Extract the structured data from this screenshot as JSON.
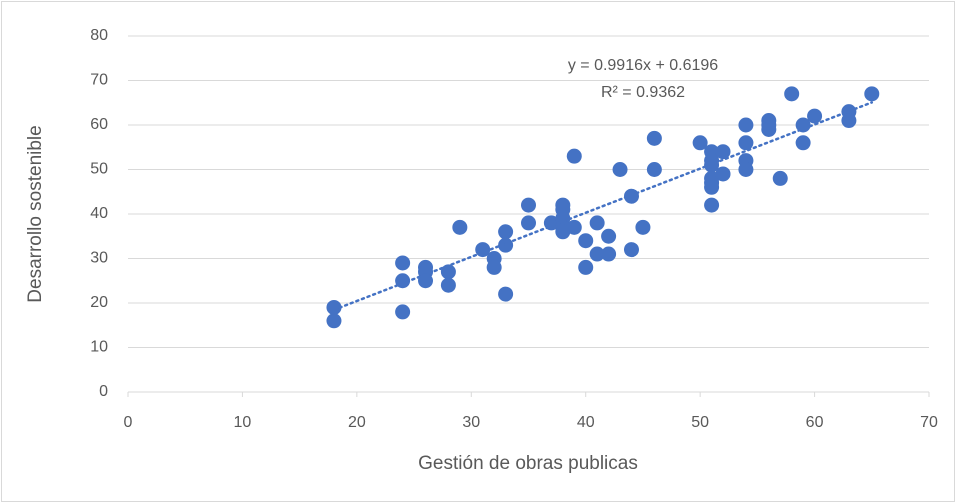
{
  "chart_data": {
    "type": "scatter",
    "x_label": "Gestión de obras publicas",
    "y_label": "Desarrollo sostenible",
    "color": "#4472c4",
    "xlim": [
      0,
      70
    ],
    "xticks": [
      0,
      10,
      20,
      30,
      40,
      50,
      60,
      70
    ],
    "ylim": [
      0,
      80
    ],
    "yticks": [
      0,
      10,
      20,
      30,
      40,
      50,
      60,
      70,
      80
    ],
    "grid": true,
    "x": [
      18,
      18,
      24,
      24,
      24,
      26,
      26,
      26,
      28,
      28,
      29,
      31,
      32,
      32,
      33,
      33,
      33,
      35,
      35,
      37,
      38,
      38,
      38,
      38,
      38,
      39,
      39,
      40,
      40,
      41,
      41,
      42,
      42,
      43,
      44,
      44,
      45,
      46,
      46,
      50,
      51,
      51,
      51,
      51,
      51,
      51,
      51,
      52,
      52,
      54,
      54,
      54,
      54,
      56,
      56,
      56,
      57,
      58,
      59,
      59,
      60,
      63,
      63,
      65
    ],
    "y": [
      19,
      16,
      29,
      25,
      18,
      28,
      27,
      25,
      27,
      24,
      37,
      32,
      30,
      28,
      36,
      33,
      22,
      42,
      38,
      38,
      42,
      41,
      39,
      37,
      36,
      53,
      37,
      34,
      28,
      38,
      31,
      35,
      31,
      50,
      44,
      32,
      37,
      57,
      50,
      56,
      54,
      52,
      51,
      48,
      47,
      46,
      42,
      54,
      49,
      60,
      56,
      52,
      50,
      61,
      60,
      59,
      48,
      67,
      60,
      56,
      62,
      63,
      61,
      67
    ],
    "trendline": {
      "slope": 0.9916,
      "intercept": 0.6196,
      "equation": "y = 0.9916x + 0.6196",
      "r_squared": "R² = 0.9362"
    }
  }
}
